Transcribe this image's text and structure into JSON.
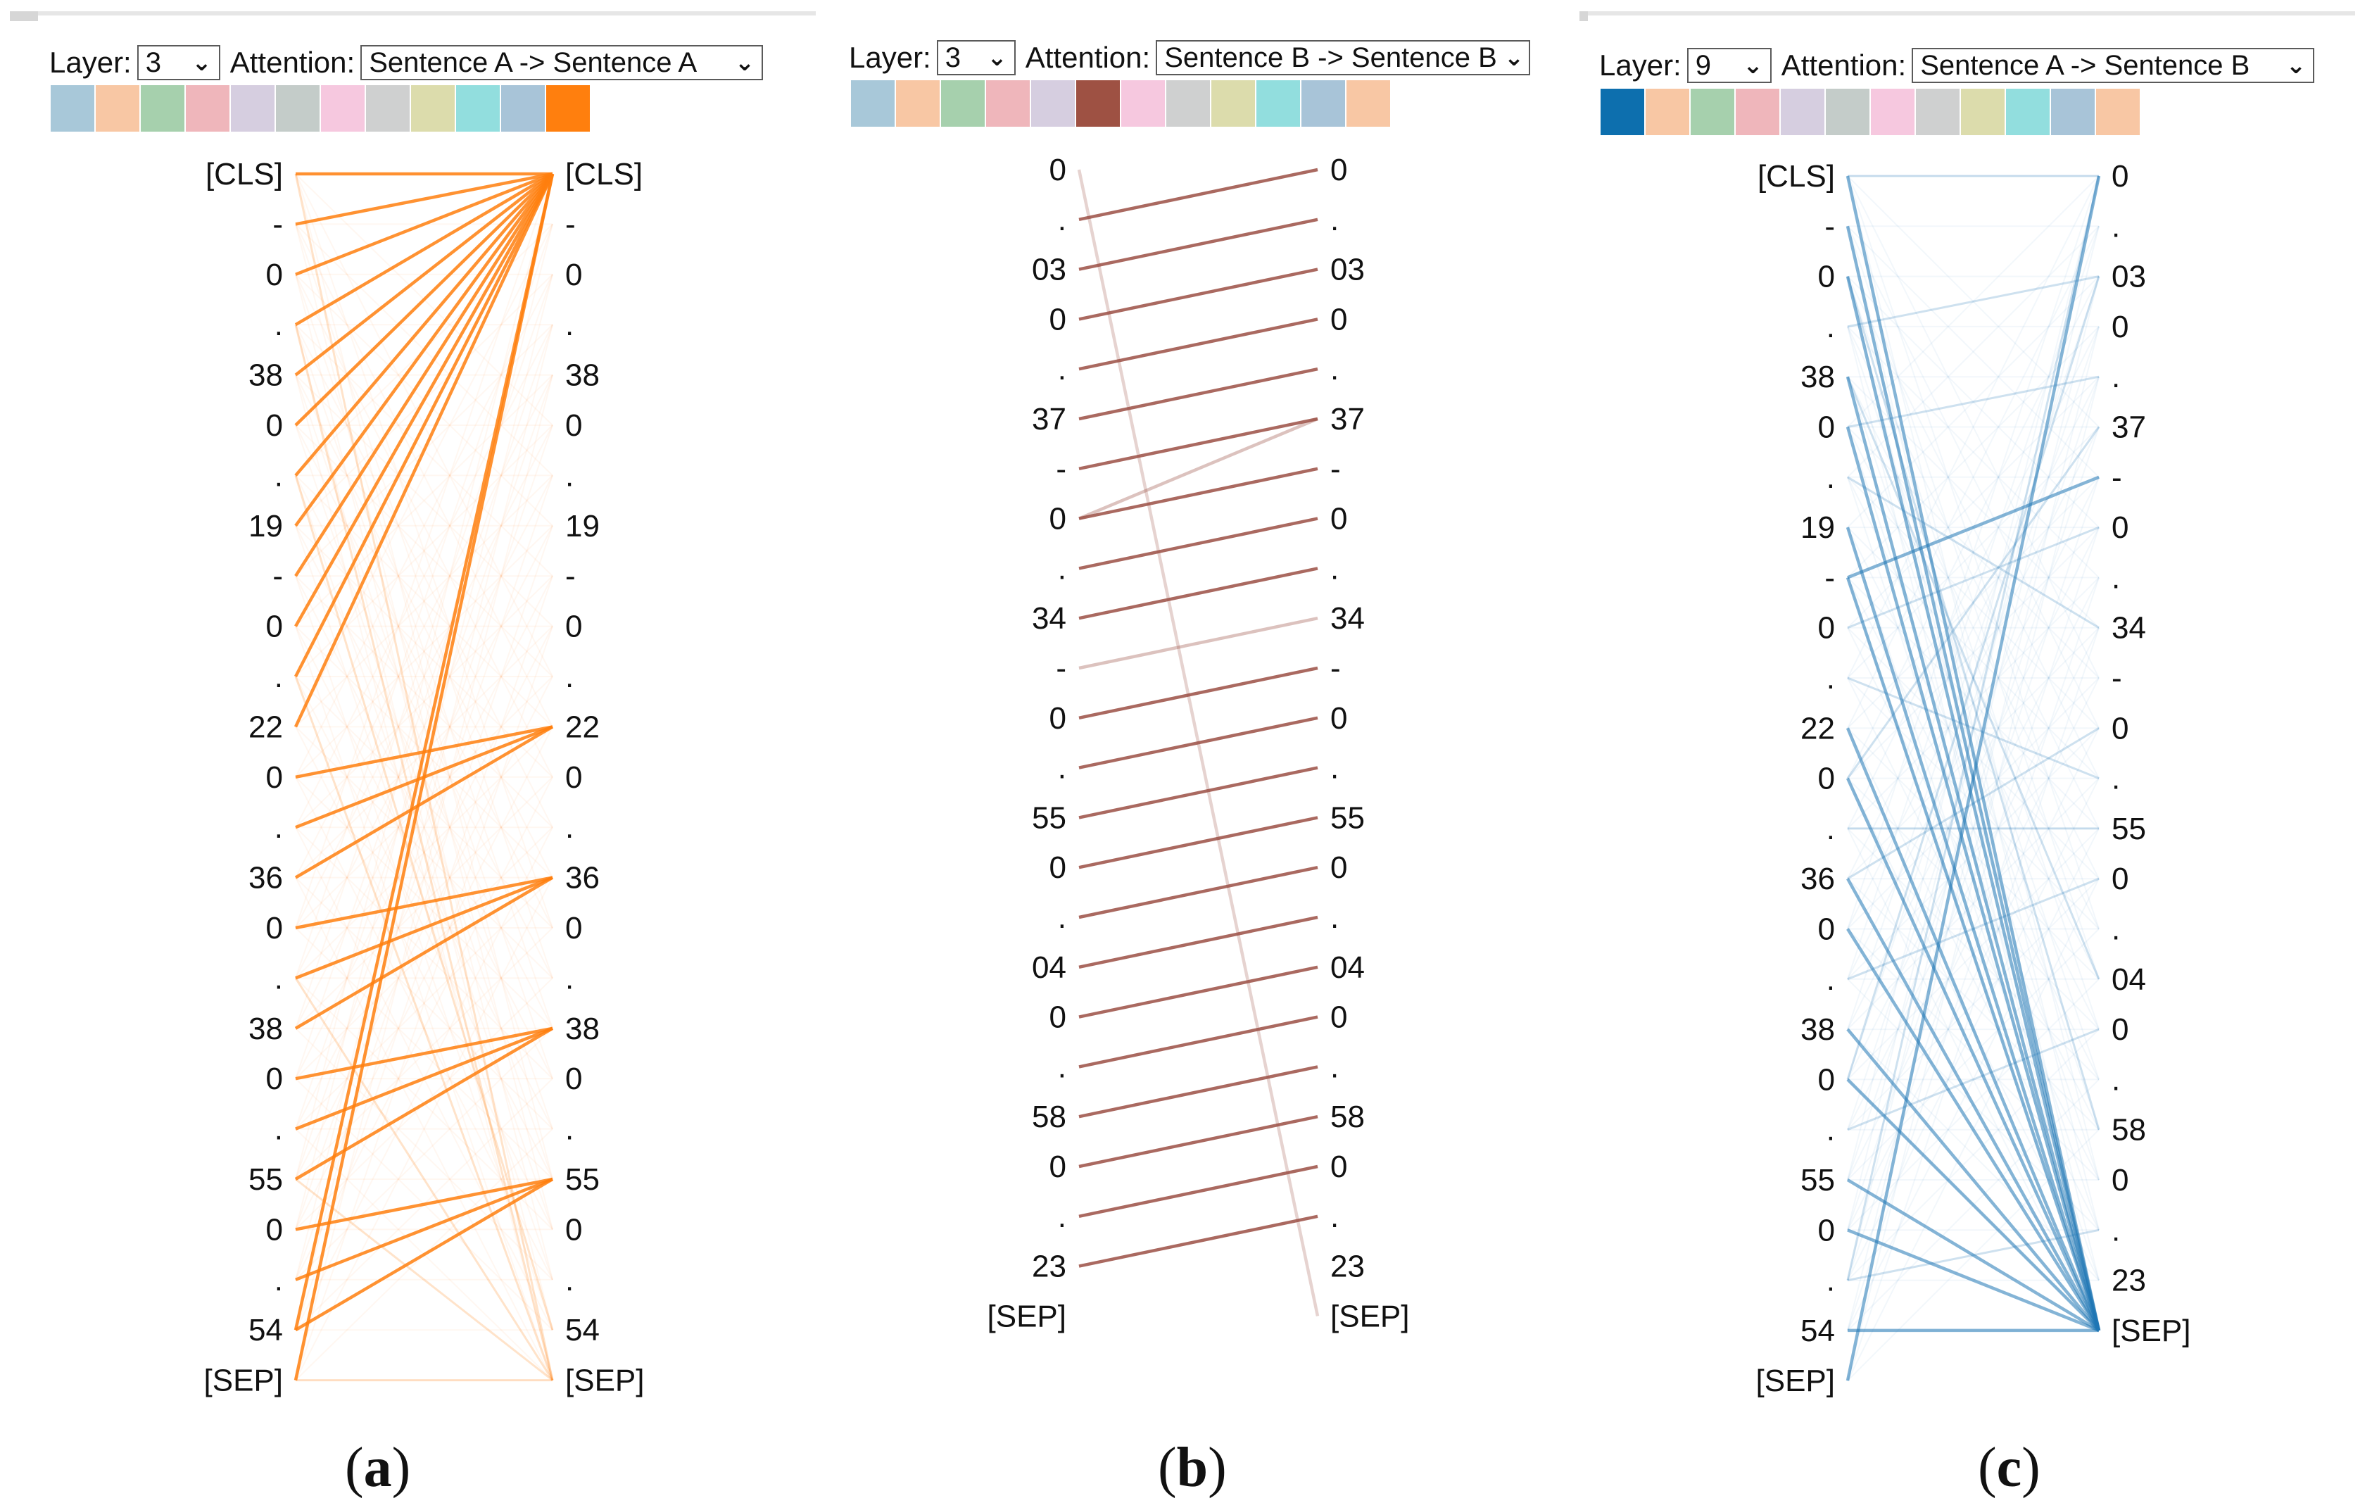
{
  "panels": [
    {
      "id": "a",
      "caption_letter": "a",
      "layer_label": "Layer:",
      "layer_value": "3",
      "attention_label": "Attention:",
      "attention_value": "Sentence A -> Sentence A",
      "swatch_colors": [
        "#a8c8d9",
        "#f8c7a4",
        "#a6d0ad",
        "#efb6bb",
        "#d6cee0",
        "#c4ccc9",
        "#f6c8df",
        "#cfd0d0",
        "#dcdcac",
        "#92dede",
        "#a8c4d8",
        "#ff7f0e"
      ],
      "line_color": "#ff7f0e",
      "left_tokens": [
        "[CLS]",
        "-",
        "0",
        ".",
        "38",
        "0",
        ".",
        "19",
        "-",
        "0",
        ".",
        "22",
        "0",
        ".",
        "36",
        "0",
        ".",
        "38",
        "0",
        ".",
        "55",
        "0",
        ".",
        "54",
        "[SEP]"
      ],
      "right_tokens": [
        "[CLS]",
        "-",
        "0",
        ".",
        "38",
        "0",
        ".",
        "19",
        "-",
        "0",
        ".",
        "22",
        "0",
        ".",
        "36",
        "0",
        ".",
        "38",
        "0",
        ".",
        "55",
        "0",
        ".",
        "54",
        "[SEP]"
      ],
      "strong_edges": [
        [
          1,
          0
        ],
        [
          2,
          0
        ],
        [
          3,
          0
        ],
        [
          4,
          0
        ],
        [
          5,
          0
        ],
        [
          6,
          0
        ],
        [
          7,
          0
        ],
        [
          8,
          0
        ],
        [
          9,
          0
        ],
        [
          10,
          0
        ],
        [
          11,
          0
        ],
        [
          12,
          11
        ],
        [
          13,
          11
        ],
        [
          14,
          11
        ],
        [
          15,
          14
        ],
        [
          16,
          14
        ],
        [
          17,
          14
        ],
        [
          18,
          17
        ],
        [
          19,
          17
        ],
        [
          20,
          17
        ],
        [
          21,
          20
        ],
        [
          22,
          20
        ],
        [
          23,
          20
        ],
        [
          24,
          0
        ],
        [
          0,
          0
        ],
        [
          23,
          0
        ]
      ],
      "faint_edges": [
        [
          0,
          24
        ],
        [
          24,
          24
        ],
        [
          3,
          24
        ],
        [
          10,
          24
        ],
        [
          16,
          24
        ],
        [
          20,
          24
        ],
        [
          6,
          23
        ]
      ]
    },
    {
      "id": "b",
      "caption_letter": "b",
      "layer_label": "Layer:",
      "layer_value": "3",
      "attention_label": "Attention:",
      "attention_value": "Sentence B -> Sentence B",
      "swatch_colors": [
        "#a8c8d9",
        "#f8c7a4",
        "#a6d0ad",
        "#efb6bb",
        "#d6cee0",
        "#9e5143",
        "#f6c8df",
        "#cfd0d0",
        "#dcdcac",
        "#92dede",
        "#a8c4d8",
        "#f8c7a4"
      ],
      "line_color": "#9b4f44",
      "left_tokens": [
        "0",
        ".",
        "03",
        "0",
        ".",
        "37",
        "-",
        "0",
        ".",
        "34",
        "-",
        "0",
        ".",
        "55",
        "0",
        ".",
        "04",
        "0",
        ".",
        "58",
        "0",
        ".",
        "23",
        "[SEP]"
      ],
      "right_tokens": [
        "0",
        ".",
        "03",
        "0",
        ".",
        "37",
        "-",
        "0",
        ".",
        "34",
        "-",
        "0",
        ".",
        "55",
        "0",
        ".",
        "04",
        "0",
        ".",
        "58",
        "0",
        ".",
        "23",
        "[SEP]"
      ],
      "strong_edges": [
        [
          1,
          0
        ],
        [
          2,
          1
        ],
        [
          3,
          2
        ],
        [
          4,
          3
        ],
        [
          5,
          4
        ],
        [
          6,
          5
        ],
        [
          7,
          6
        ],
        [
          8,
          7
        ],
        [
          9,
          8
        ],
        [
          10,
          9
        ],
        [
          11,
          10
        ],
        [
          12,
          11
        ],
        [
          13,
          12
        ],
        [
          14,
          13
        ],
        [
          15,
          14
        ],
        [
          16,
          15
        ],
        [
          17,
          16
        ],
        [
          18,
          17
        ],
        [
          19,
          18
        ],
        [
          20,
          19
        ],
        [
          21,
          20
        ],
        [
          22,
          21
        ],
        [
          7,
          5
        ],
        [
          0,
          23
        ]
      ],
      "faint_edges": []
    },
    {
      "id": "c",
      "caption_letter": "c",
      "layer_label": "Layer:",
      "layer_value": "9",
      "attention_label": "Attention:",
      "attention_value": "Sentence A -> Sentence B",
      "swatch_colors": [
        "#0d6fae",
        "#f8c7a4",
        "#a6d0ad",
        "#efb6bb",
        "#d6cee0",
        "#c4ccc9",
        "#f6c8df",
        "#cfd0d0",
        "#dcdcac",
        "#92dede",
        "#a8c4d8",
        "#f8c7a4"
      ],
      "line_color": "#1f77b4",
      "left_tokens": [
        "[CLS]",
        "-",
        "0",
        ".",
        "38",
        "0",
        ".",
        "19",
        "-",
        "0",
        ".",
        "22",
        "0",
        ".",
        "36",
        "0",
        ".",
        "38",
        "0",
        ".",
        "55",
        "0",
        ".",
        "54",
        "[SEP]"
      ],
      "right_tokens": [
        "0",
        ".",
        "03",
        "0",
        ".",
        "37",
        "-",
        "0",
        ".",
        "34",
        "-",
        "0",
        ".",
        "55",
        "0",
        ".",
        "04",
        "0",
        ".",
        "58",
        "0",
        ".",
        "23",
        "[SEP]"
      ],
      "strong_edges": [
        [
          0,
          23
        ],
        [
          1,
          23
        ],
        [
          2,
          23
        ],
        [
          4,
          23
        ],
        [
          5,
          23
        ],
        [
          7,
          23
        ],
        [
          8,
          23
        ],
        [
          11,
          23
        ],
        [
          12,
          23
        ],
        [
          14,
          23
        ],
        [
          15,
          23
        ],
        [
          17,
          23
        ],
        [
          18,
          23
        ],
        [
          20,
          23
        ],
        [
          21,
          23
        ],
        [
          23,
          23
        ],
        [
          8,
          6
        ],
        [
          24,
          0
        ]
      ],
      "faint_edges": [
        [
          0,
          0
        ],
        [
          3,
          2
        ],
        [
          5,
          4
        ],
        [
          9,
          7
        ],
        [
          10,
          12
        ],
        [
          13,
          13
        ],
        [
          16,
          14
        ],
        [
          19,
          17
        ],
        [
          22,
          21
        ],
        [
          6,
          9
        ],
        [
          12,
          5
        ],
        [
          18,
          2
        ],
        [
          22,
          0
        ],
        [
          2,
          19
        ],
        [
          4,
          16
        ],
        [
          14,
          11
        ]
      ]
    }
  ]
}
